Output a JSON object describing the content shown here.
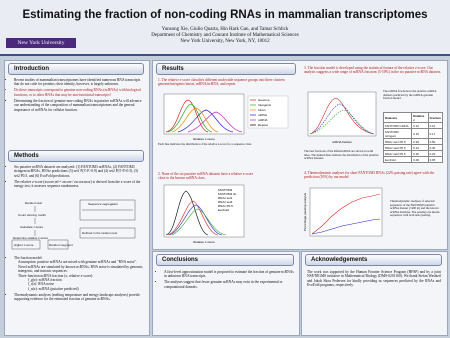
{
  "header": {
    "title": "Estimating the fraction of non-coding RNAs in mammalian transcriptomes",
    "authors": "Yunsong Xie, Giulio Quarta, Hin Hark Gan, and Tamar Schlick",
    "affiliation": "Department of Chemistry and Courant Institute of Mathematical Sciences",
    "address": "New York University,  New York, NY, 10012",
    "logo": "New York University"
  },
  "introduction": {
    "heading": "Introduction",
    "bullets": [
      "Recent studies of mammalian transcriptomes have identified numerous RNA transcripts that do not code for proteins; their identity, however, is largely unknown.",
      "Do these transcripts correspond to genuine non-coding RNAs (ncRNAs) with biological functions, or to other RNAs that may be non-functional transcripts?",
      "Determining the fraction of genuine non-coding RNAs in putative ncRNAs will advance our understanding of the composition of mammalian transcriptomes and the general importance of ncRNAs for cellular function."
    ]
  },
  "methods": {
    "heading": "Methods",
    "bullets": [
      "Six putative ncRNA datasets are analyzed: (1) FANTOM3 ncRNAs, (2) FANTOM3 stringent ncRNAs, RNAz predictions (3) set1 P(3'-P>0.9) and (4) set2 P(3'-P>0.5), (5) set2 P0.5, and (6) EvoFold predictions.",
      "The relative z-score (zscore,rel = zscore / zscore,max) is derived from the z-score of the energy test; it assesses sequence randomness.",
      "The fraction model:",
      "Thermodynamic analyses (melting temperature and energy landscape analyses) provide supporting evidence for the estimated fraction of genuine ncRNAs."
    ],
    "diagram": [
      "Random test",
      "Sequence segregation",
      "Count winning motifs",
      "Calculate z-score",
      "Determine relative z-score",
      "Higher z-score",
      "Random segment",
      "Defined in the random test"
    ],
    "model": [
      "Assumption: putative ncRNAs are mixed with genuine ncRNAs and \"RNA noise\".",
      "Novel ncRNAs are simulated by known ncRNAs; RNA noise is simulated by genomic, intergenic, and intronic sequences.",
      "Three-function ncRNA fraction (x, relative z-score):",
      "f_g(z): ncRNA fraction",
      "f_r(z): RNA noise",
      "f_n(z): ncRNA (putative predicted)"
    ]
  },
  "results": {
    "heading": "Results",
    "items": [
      "1. The relative z-score classifies different nucleotide sequence groups into three clusters: genome/intergenic/intron, mRNA/ncRNA, and repeat.",
      "2. None of the six putative ncRNA datasets have a relative z-score close to the known ncRNA class.",
      "3. The fraction model is developed using the statistical feature of the relative z-score. Our analysis suggests a wide range of ncRNA fractions (5-50%) in the six putative ncRNA datasets.",
      "4. Thermodynamic analyses for short FANTOM3 RNAs (22% passing rate) agree with the prediction (10%) by our model."
    ],
    "captions": [
      "Each line indicates the distribution of the relative z-score for a sequence class.",
      "The best fractions of the Rfam/ncRNA are shown in solid lines. The dashed lines indicate the distribution of the putative ncRNA datasets.",
      "The ncRNA fractions in the putative ncRNA datasets predicted by the ncRNA-genome fraction model.",
      "Thermodynamic analyses of selected sequences of the FANTOM3 putative ncRNA dataset (<400 nt) and the known ncRNA database. The passing rate means sequences with both tests passing."
    ],
    "axis": [
      "Relative z-score",
      "ncRNA fraction",
      "Percentage passing analysis"
    ],
    "legend1": [
      "Genome",
      "Intergenic",
      "Intron",
      "mRNA",
      "ncRNA",
      "Repeat"
    ],
    "legend2": [
      "FANTOM3",
      "FANTOM3 str.",
      "RNAz set1",
      "RNAz set2",
      "RNAz P0.5",
      "EvoFold"
    ],
    "table": {
      "header": [
        "Datasets",
        "Relative z",
        "Fraction"
      ],
      "rows": [
        [
          "FANTOM3 ncRNA",
          "0.12",
          "0.10"
        ],
        [
          "FANTOM3 stringent",
          "0.15",
          "0.17"
        ],
        [
          "RNAz set1 P0.9",
          "0.33",
          "0.50"
        ],
        [
          "RNAz set2 P0.5",
          "0.24",
          "0.30"
        ],
        [
          "RNAz set2 P0.5",
          "0.20",
          "0.22"
        ],
        [
          "EvoFold",
          "0.09",
          "0.05"
        ]
      ]
    }
  },
  "conclusions": {
    "heading": "Conclusions",
    "bullets": [
      "A first-level approximation model is proposed to estimate the fraction of genuine ncRNAs in unknown RNA transcripts.",
      "The analyses suggest that fewer genuine ncRNAs may exist in the experimental or computational datasets."
    ]
  },
  "acknowledgements": {
    "heading": "Acknowledgements",
    "text": "The work was supported by the Human Frontier Science Program (HFSP) and by a joint NSF/NIGMS initiative in Mathematical Biology (DMS-0201160). We thank Stefan Washietl and Jakob Skou Pedersen for kindly providing us sequences predicted by the RNAz and EvoFold programs, respectively."
  }
}
